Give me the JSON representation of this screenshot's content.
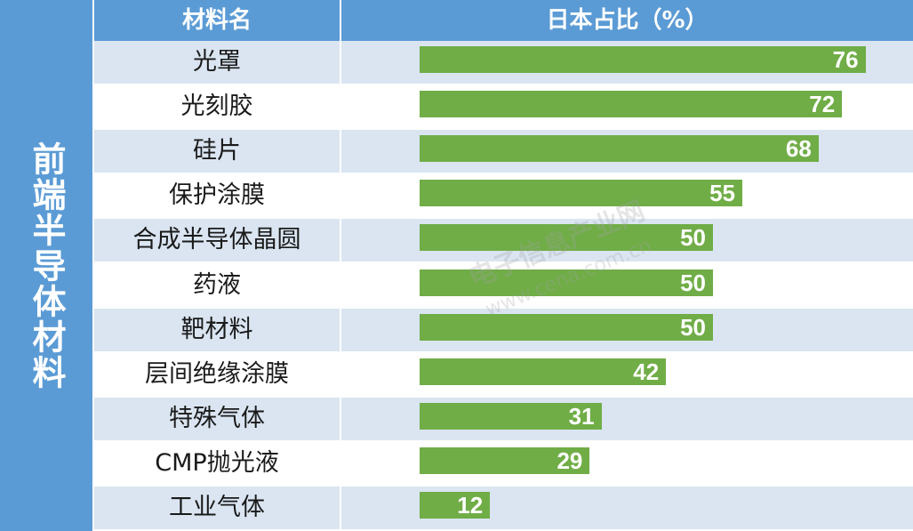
{
  "sidebar": {
    "label": "前端半导体材料"
  },
  "header": {
    "col_name": "材料名",
    "col_share": "日本占比（%）"
  },
  "watermark": {
    "text": "电子信息产业网",
    "url": "www.cena.com.cn"
  },
  "chart_data": {
    "type": "bar",
    "orientation": "horizontal",
    "categories": [
      "光罩",
      "光刻胶",
      "硅片",
      "保护涂膜",
      "合成半导体晶圆",
      "药液",
      "靶材料",
      "层间绝缘涂膜",
      "特殊气体",
      "CMP抛光液",
      "工业气体"
    ],
    "values": [
      76,
      72,
      68,
      55,
      50,
      50,
      50,
      42,
      31,
      29,
      12
    ],
    "xlabel": "日本占比（%）",
    "ylabel": "材料名",
    "xlim": [
      0,
      100
    ],
    "colors": {
      "bar": "#70ad47",
      "header": "#5b9bd5",
      "row_alt": "#dae5f1"
    }
  }
}
